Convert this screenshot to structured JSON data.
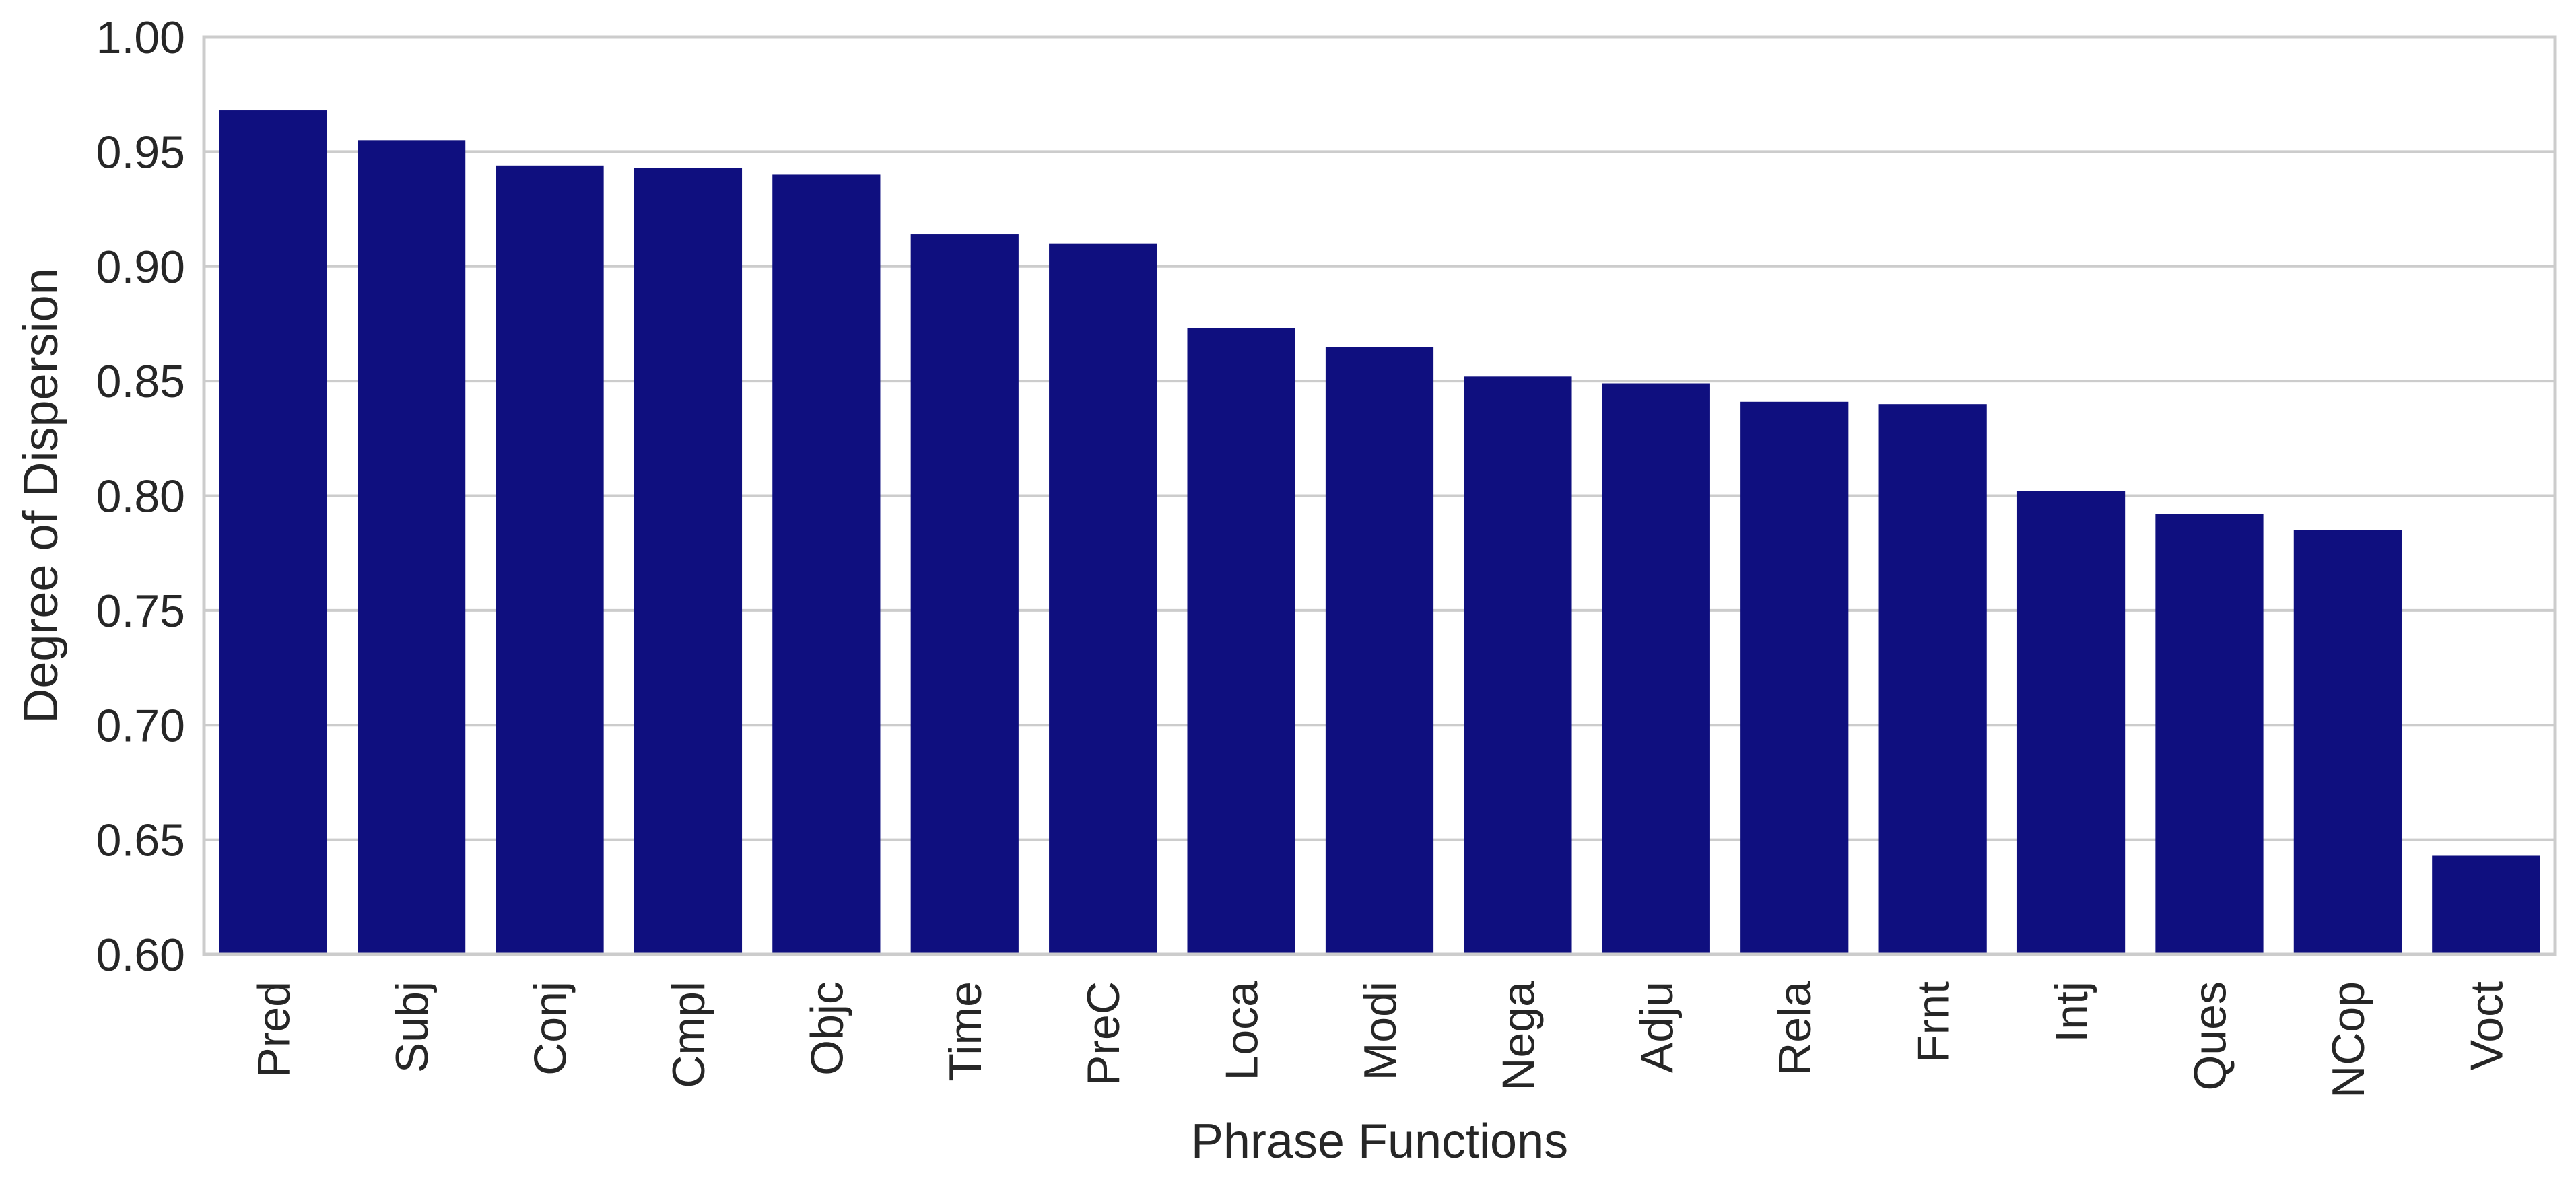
{
  "chart_data": {
    "type": "bar",
    "title": "",
    "xlabel": "Phrase Functions",
    "ylabel": "Degree of Dispersion",
    "ylim": [
      0.6,
      1.0
    ],
    "yticks": [
      "0.60",
      "0.65",
      "0.70",
      "0.75",
      "0.80",
      "0.85",
      "0.90",
      "0.95",
      "1.00"
    ],
    "categories": [
      "Pred",
      "Subj",
      "Conj",
      "Cmpl",
      "Objc",
      "Time",
      "PreC",
      "Loca",
      "Modi",
      "Nega",
      "Adju",
      "Rela",
      "Frnt",
      "Intj",
      "Ques",
      "NCop",
      "Voct"
    ],
    "values": [
      0.968,
      0.955,
      0.944,
      0.943,
      0.94,
      0.914,
      0.91,
      0.873,
      0.865,
      0.852,
      0.849,
      0.841,
      0.84,
      0.802,
      0.792,
      0.785,
      0.643
    ],
    "bar_color": "#0f0f7f",
    "grid": true,
    "legend": "none"
  }
}
